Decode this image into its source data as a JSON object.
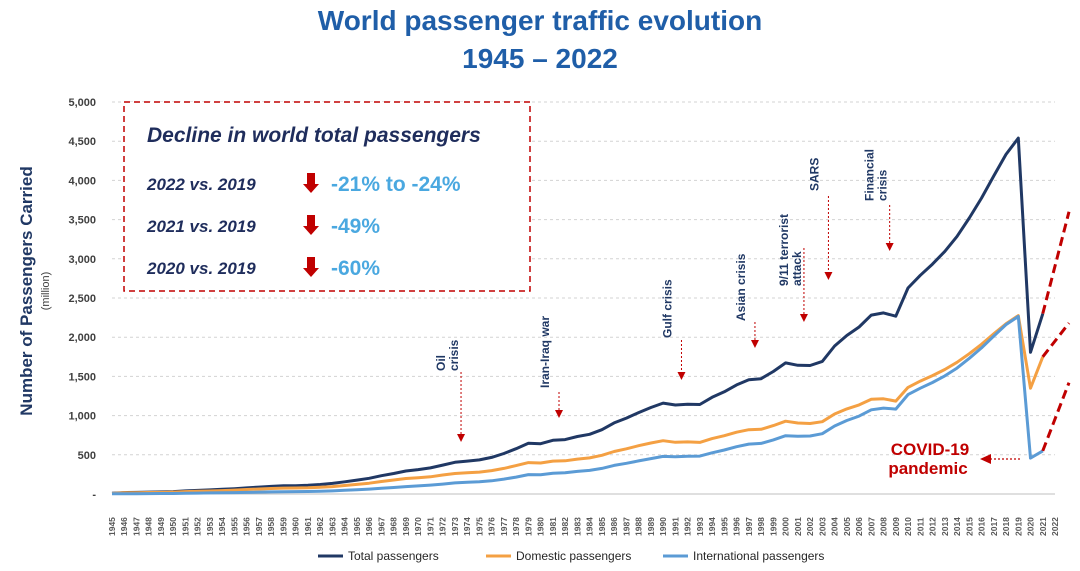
{
  "title_line1": "World passenger traffic evolution",
  "title_line2": "1945 – 2022",
  "colors": {
    "title": "#1f5ea8",
    "total": "#203864",
    "domestic": "#f4a043",
    "international": "#5b9bd5",
    "annotation": "#203864",
    "covid": "#c00000",
    "panel_text": "#1f2d5c",
    "decline_value": "#4aa8e0",
    "arrow": "#c00000"
  },
  "decline_box": {
    "heading": "Decline in world total passengers",
    "rows": [
      {
        "label": "2022 vs. 2019",
        "value": "-21% to -24%"
      },
      {
        "label": "2021 vs. 2019",
        "value": "-49%"
      },
      {
        "label": "2020 vs. 2019",
        "value": "-60%"
      }
    ]
  },
  "events": [
    {
      "lines": [
        "Oil",
        "crisis"
      ],
      "year": "1973"
    },
    {
      "lines": [
        "Iran-Iraq war"
      ],
      "year": "1981"
    },
    {
      "lines": [
        "Gulf crisis"
      ],
      "year": "1991"
    },
    {
      "lines": [
        "Asian crisis"
      ],
      "year": "1997"
    },
    {
      "lines": [
        "9/11 terrorist",
        "attack"
      ],
      "year": "2001"
    },
    {
      "lines": [
        "SARS"
      ],
      "year": "2003"
    },
    {
      "lines": [
        "Financial",
        "crisis"
      ],
      "year": "2008"
    }
  ],
  "covid_label": [
    "COVID-19",
    "pandemic"
  ],
  "chart_data": {
    "type": "line",
    "ylabel": "Number of Passengers Carried",
    "yunit": "(million)",
    "ylim": [
      0,
      5000
    ],
    "yticks": [
      "-",
      "500",
      "1,000",
      "1,500",
      "2,000",
      "2,500",
      "3,000",
      "3,500",
      "4,000",
      "4,500",
      "5,000"
    ],
    "grid": true,
    "legend_position": "bottom",
    "x": [
      "1945",
      "1946",
      "1947",
      "1948",
      "1949",
      "1950",
      "1951",
      "1952",
      "1953",
      "1954",
      "1955",
      "1956",
      "1957",
      "1958",
      "1959",
      "1960",
      "1961",
      "1962",
      "1963",
      "1964",
      "1965",
      "1966",
      "1967",
      "1968",
      "1969",
      "1970",
      "1971",
      "1972",
      "1973",
      "1974",
      "1975",
      "1976",
      "1977",
      "1978",
      "1979",
      "1980",
      "1981",
      "1982",
      "1983",
      "1984",
      "1985",
      "1986",
      "1987",
      "1988",
      "1989",
      "1990",
      "1991",
      "1992",
      "1993",
      "1994",
      "1995",
      "1996",
      "1997",
      "1998",
      "1999",
      "2000",
      "2001",
      "2002",
      "2003",
      "2004",
      "2005",
      "2006",
      "2007",
      "2008",
      "2009",
      "2010",
      "2011",
      "2012",
      "2013",
      "2014",
      "2015",
      "2016",
      "2017",
      "2018",
      "2019",
      "2020",
      "2021",
      "2022"
    ],
    "series": [
      {
        "name": "Total passengers",
        "values": [
          9,
          18,
          21,
          24,
          27,
          31,
          40,
          46,
          52,
          60,
          68,
          78,
          88,
          97,
          104,
          106,
          111,
          121,
          135,
          155,
          177,
          200,
          233,
          261,
          293,
          311,
          333,
          368,
          404,
          420,
          435,
          467,
          516,
          578,
          647,
          642,
          685,
          694,
          733,
          761,
          820,
          907,
          968,
          1038,
          1103,
          1160,
          1135,
          1146,
          1142,
          1233,
          1304,
          1391,
          1457,
          1471,
          1562,
          1672,
          1642,
          1639,
          1691,
          1888,
          2022,
          2130,
          2282,
          2310,
          2268,
          2628,
          2790,
          2932,
          3095,
          3286,
          3521,
          3774,
          4057,
          4332,
          4540,
          1808,
          2300,
          3600
        ]
      },
      {
        "name": "Domestic passengers",
        "values": [
          7,
          15,
          17,
          19,
          21,
          24,
          30,
          34,
          38,
          44,
          50,
          57,
          64,
          70,
          75,
          76,
          79,
          86,
          95,
          108,
          122,
          138,
          160,
          178,
          198,
          208,
          220,
          242,
          262,
          271,
          279,
          298,
          326,
          362,
          400,
          396,
          420,
          423,
          445,
          460,
          494,
          542,
          577,
          616,
          651,
          680,
          660,
          664,
          658,
          707,
          743,
          788,
          820,
          825,
          872,
          928,
          906,
          899,
          922,
          1021,
          1085,
          1136,
          1208,
          1214,
          1185,
          1360,
          1440,
          1510,
          1588,
          1680,
          1790,
          1910,
          2043,
          2171,
          2275,
          1350,
          1750,
          2180
        ]
      },
      {
        "name": "International passengers",
        "values": [
          2,
          3,
          4,
          5,
          6,
          7,
          10,
          12,
          14,
          16,
          18,
          21,
          24,
          27,
          29,
          30,
          32,
          35,
          40,
          47,
          55,
          62,
          73,
          83,
          95,
          103,
          113,
          126,
          142,
          149,
          156,
          169,
          190,
          216,
          247,
          246,
          265,
          271,
          288,
          301,
          326,
          365,
          391,
          422,
          452,
          480,
          475,
          482,
          484,
          526,
          561,
          603,
          637,
          646,
          690,
          744,
          736,
          740,
          769,
          867,
          937,
          994,
          1074,
          1096,
          1083,
          1268,
          1350,
          1422,
          1507,
          1606,
          1731,
          1864,
          2014,
          2161,
          2265,
          458,
          550,
          1420
        ]
      }
    ],
    "forecast_years": [
      "2020",
      "2021",
      "2022"
    ]
  }
}
